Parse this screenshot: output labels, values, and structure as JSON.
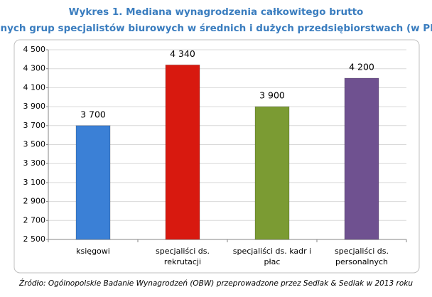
{
  "chart_data": {
    "type": "bar",
    "title": [
      "Wykres 1. Mediana wynagrodzenia całkowitego brutto",
      "różnych grup specjalistów biurowych w średnich i dużych przedsiębiorstwach (w PLN)"
    ],
    "categories": [
      [
        "księgowi"
      ],
      [
        "specjaliści ds.",
        "rekrutacji"
      ],
      [
        "specjaliści ds. kadr i",
        "płac"
      ],
      [
        "specjaliści ds.",
        "personalnych"
      ]
    ],
    "values": [
      3700,
      4340,
      3900,
      4200
    ],
    "value_labels": [
      "3 700",
      "4 340",
      "3 900",
      "4 200"
    ],
    "colors": [
      "#3b80d6",
      "#d8190f",
      "#7b9b33",
      "#6f5190"
    ],
    "ylim": [
      2500,
      4500
    ],
    "yticks": [
      {
        "value": 2500,
        "label": "2 500"
      },
      {
        "value": 2700,
        "label": "2 700"
      },
      {
        "value": 2900,
        "label": "2 900"
      },
      {
        "value": 3100,
        "label": "3 100"
      },
      {
        "value": 3300,
        "label": "3 300"
      },
      {
        "value": 3500,
        "label": "3 500"
      },
      {
        "value": 3700,
        "label": "3 700"
      },
      {
        "value": 3900,
        "label": "3 900"
      },
      {
        "value": 4100,
        "label": "4 100"
      },
      {
        "value": 4300,
        "label": "4 300"
      },
      {
        "value": 4500,
        "label": "4 500"
      }
    ],
    "grid": true,
    "source": "Źródło: Ogólnopolskie Badanie Wynagrodzeń (OBW) przeprowadzone przez Sedlak & Sedlak w 2013 roku"
  }
}
